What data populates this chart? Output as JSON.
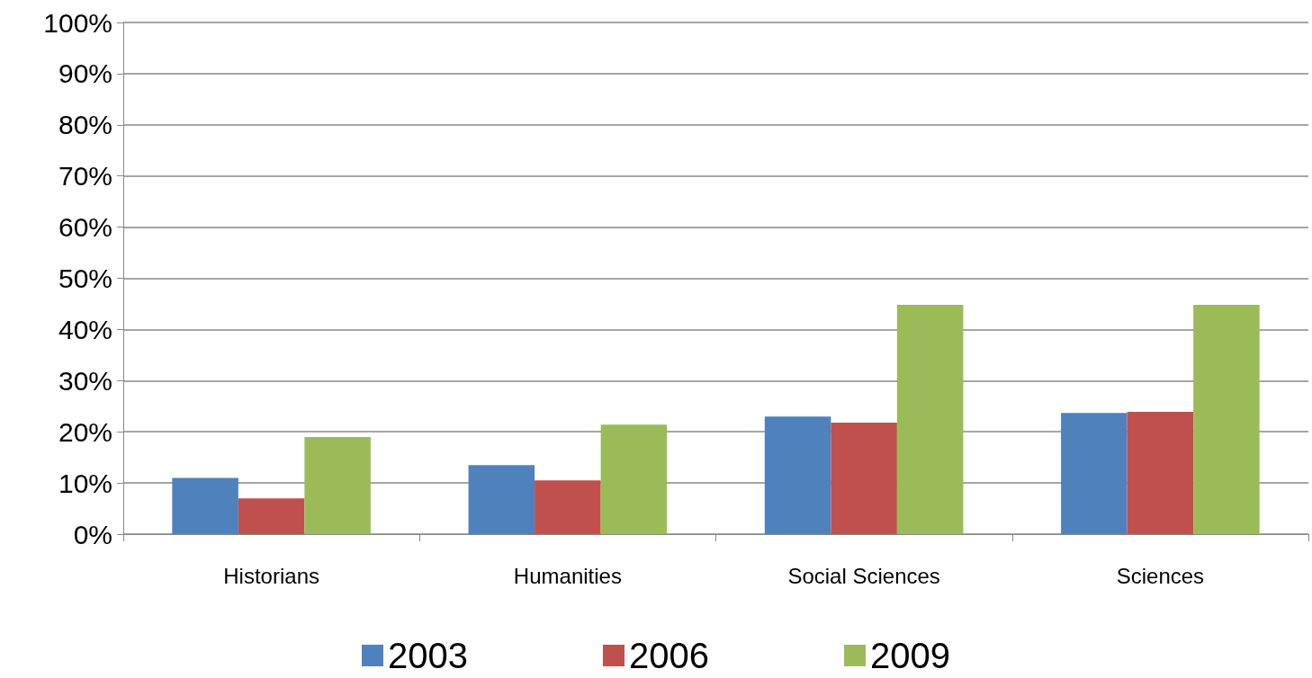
{
  "chart_data": {
    "type": "bar",
    "categories": [
      "Historians",
      "Humanities",
      "Social Sciences",
      "Sciences"
    ],
    "series": [
      {
        "name": "2003",
        "color": "#4f81bd",
        "values": [
          11,
          13.5,
          23,
          23.7
        ]
      },
      {
        "name": "2006",
        "color": "#c0504d",
        "values": [
          7,
          10.5,
          21.8,
          23.9
        ]
      },
      {
        "name": "2009",
        "color": "#9bbb59",
        "values": [
          19,
          21.4,
          44.8,
          44.8
        ]
      }
    ],
    "ylim": [
      0,
      100
    ],
    "yticks": [
      {
        "value": 0,
        "label": "0%"
      },
      {
        "value": 10,
        "label": "10%"
      },
      {
        "value": 20,
        "label": "20%"
      },
      {
        "value": 30,
        "label": "30%"
      },
      {
        "value": 40,
        "label": "40%"
      },
      {
        "value": 50,
        "label": "50%"
      },
      {
        "value": 60,
        "label": "60%"
      },
      {
        "value": 70,
        "label": "70%"
      },
      {
        "value": 80,
        "label": "80%"
      },
      {
        "value": 90,
        "label": "90%"
      },
      {
        "value": 100,
        "label": "100%"
      }
    ],
    "grid": "y",
    "legend": "bottom"
  }
}
